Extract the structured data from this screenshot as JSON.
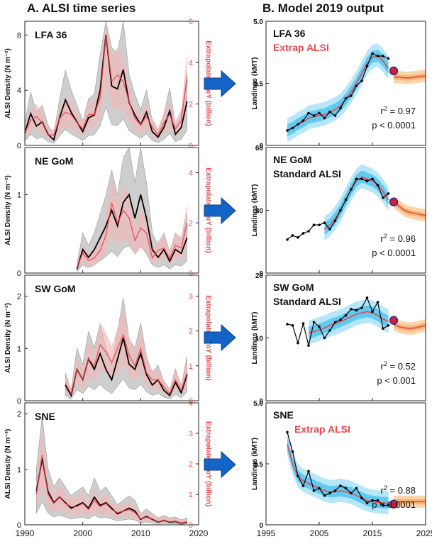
{
  "titles": {
    "left": "A. ALSI time series",
    "right": "B. Model 2019 output"
  },
  "axis_labels": {
    "left_y": "ALSI Density (N m⁻²)",
    "left_y2": "Extrapolated YoY (billion)",
    "right_y": "Landings (kMT)"
  },
  "colors": {
    "black_series": "#000000",
    "red_series": "#e8474c",
    "gray_band": "#bdbdbd",
    "pink_band": "#f2b9b9",
    "blue_band_outer": "#aee3f7",
    "blue_band_inner": "#4cc3ef",
    "forecast_band": "#f4b26a",
    "forecast_line": "#e8474c",
    "arrow": "#1464c8",
    "endpoint": "#d0202e"
  },
  "icons": {
    "arrow": "right-arrow-icon"
  },
  "chart_data": [
    {
      "type": "line",
      "panel": "left",
      "label": "LFA 36",
      "x": [
        1990,
        2020
      ],
      "xticks": [
        1990,
        2000,
        2010,
        2020
      ],
      "ylim": [
        0,
        9
      ],
      "yticks": [
        0,
        4,
        8
      ],
      "y2lim": [
        0,
        6
      ],
      "y2ticks": [
        0,
        2,
        4,
        6
      ],
      "years": [
        1990,
        1991,
        1992,
        1993,
        1994,
        1995,
        1996,
        1997,
        1998,
        1999,
        2000,
        2001,
        2002,
        2003,
        2004,
        2005,
        2006,
        2007,
        2008,
        2009,
        2010,
        2011,
        2012,
        2013,
        2014,
        2015,
        2016,
        2017,
        2018
      ],
      "black": [
        0.9,
        2.3,
        1.4,
        1.7,
        0.8,
        0.4,
        2.0,
        3.3,
        2.4,
        1.7,
        1.0,
        2.0,
        2.2,
        4.0,
        8.0,
        4.3,
        4.1,
        5.5,
        3.1,
        2.2,
        1.5,
        2.4,
        1.0,
        0.6,
        1.3,
        2.5,
        0.8,
        1.3,
        3.2
      ],
      "red": [
        0.6,
        1.2,
        1.4,
        1.1,
        0.5,
        0.5,
        1.3,
        1.6,
        1.5,
        1.1,
        0.8,
        1.5,
        1.5,
        2.3,
        5.3,
        3.1,
        3.4,
        3.1,
        2.1,
        1.3,
        1.0,
        1.4,
        0.9,
        0.5,
        1.1,
        1.5,
        0.8,
        1.2,
        3.3
      ]
    },
    {
      "type": "line",
      "panel": "left",
      "label": "NE GoM",
      "x": [
        1990,
        2020
      ],
      "xticks": [
        1990,
        2000,
        2010,
        2020
      ],
      "ylim": [
        0,
        1.6
      ],
      "yticks": [
        0,
        1
      ],
      "y2lim": [
        0,
        5
      ],
      "y2ticks": [
        0,
        2,
        4
      ],
      "years": [
        1999,
        2000,
        2001,
        2002,
        2003,
        2004,
        2005,
        2006,
        2007,
        2008,
        2009,
        2010,
        2011,
        2012,
        2013,
        2014,
        2015,
        2016,
        2017,
        2018
      ],
      "black": [
        0.05,
        0.3,
        0.2,
        0.3,
        0.45,
        0.6,
        0.8,
        0.6,
        0.9,
        1.0,
        0.7,
        1.0,
        0.7,
        0.3,
        0.2,
        0.3,
        0.15,
        0.3,
        0.25,
        0.45
      ],
      "red": [
        0.2,
        0.8,
        0.5,
        0.6,
        0.9,
        1.5,
        2.8,
        2.0,
        2.5,
        2.2,
        1.3,
        1.8,
        1.6,
        0.6,
        0.9,
        1.0,
        0.6,
        1.1,
        1.0,
        2.0
      ]
    },
    {
      "type": "line",
      "panel": "left",
      "label": "SW GoM",
      "x": [
        1990,
        2020
      ],
      "xticks": [
        1990,
        2000,
        2010,
        2020
      ],
      "ylim": [
        0,
        2.4
      ],
      "yticks": [
        0,
        1,
        2
      ],
      "y2lim": [
        0,
        3.6
      ],
      "y2ticks": [
        0,
        1,
        2,
        3
      ],
      "years": [
        1997,
        1998,
        1999,
        2000,
        2001,
        2002,
        2003,
        2004,
        2005,
        2006,
        2007,
        2008,
        2009,
        2010,
        2011,
        2012,
        2013,
        2014,
        2015,
        2016,
        2017,
        2018
      ],
      "black": [
        0.3,
        0.1,
        0.6,
        0.4,
        0.8,
        0.6,
        0.9,
        0.6,
        0.4,
        0.8,
        1.2,
        0.7,
        0.6,
        0.9,
        0.5,
        0.3,
        0.4,
        0.2,
        0.1,
        0.35,
        0.15,
        0.5
      ],
      "red": [
        0.5,
        0.2,
        0.9,
        0.6,
        1.2,
        1.0,
        1.6,
        1.4,
        1.1,
        1.5,
        1.9,
        1.3,
        1.0,
        1.5,
        0.8,
        0.6,
        0.6,
        0.4,
        0.2,
        0.6,
        0.3,
        0.8
      ]
    },
    {
      "type": "line",
      "panel": "left",
      "label": "SNE",
      "x": [
        1990,
        2020
      ],
      "xticks": [
        1990,
        2000,
        2010,
        2020
      ],
      "ylim": [
        0,
        2.2
      ],
      "yticks": [
        0,
        1,
        2
      ],
      "y2lim": [
        0,
        4
      ],
      "y2ticks": [
        0,
        1,
        2,
        3,
        4
      ],
      "years": [
        1992,
        1993,
        1994,
        1995,
        1996,
        1997,
        1998,
        1999,
        2000,
        2001,
        2002,
        2003,
        2004,
        2005,
        2006,
        2007,
        2008,
        2009,
        2010,
        2011,
        2012,
        2013,
        2014,
        2015,
        2016,
        2017,
        2018
      ],
      "black": [
        0.6,
        1.2,
        0.6,
        0.4,
        0.5,
        0.4,
        0.3,
        0.35,
        0.4,
        0.3,
        0.5,
        0.35,
        0.4,
        0.3,
        0.2,
        0.25,
        0.3,
        0.25,
        0.1,
        0.15,
        0.1,
        0.05,
        0.08,
        0.05,
        0.06,
        0.03,
        0.05
      ],
      "red": [
        1.0,
        2.3,
        1.0,
        0.7,
        0.9,
        0.7,
        0.6,
        0.6,
        0.7,
        0.5,
        0.8,
        0.6,
        0.7,
        0.5,
        0.4,
        0.45,
        0.5,
        0.4,
        0.2,
        0.25,
        0.2,
        0.1,
        0.15,
        0.1,
        0.12,
        0.06,
        0.1
      ]
    },
    {
      "type": "line",
      "panel": "right",
      "label": "LFA 36",
      "sublabel": "Extrap ALSI",
      "x": [
        1995,
        2025
      ],
      "xticks": [
        1995,
        2005,
        2015,
        2025
      ],
      "ylim": [
        0,
        5.0
      ],
      "yticks": [
        0,
        2.5,
        5.0
      ],
      "ytick_labels": [
        "0",
        "2.5",
        "5.0"
      ],
      "r2": "0.97",
      "p": "p < 0.0001",
      "obs_years": [
        1999,
        2000,
        2001,
        2002,
        2003,
        2004,
        2005,
        2006,
        2007,
        2008,
        2009,
        2010,
        2011,
        2012,
        2013,
        2014,
        2015,
        2016,
        2017,
        2018
      ],
      "obs": [
        0.6,
        0.7,
        0.85,
        1.0,
        1.3,
        1.2,
        1.3,
        1.1,
        1.35,
        1.2,
        1.5,
        1.9,
        2.0,
        2.4,
        2.6,
        3.2,
        3.7,
        3.6,
        3.6,
        3.5
      ],
      "fit": [
        0.6,
        0.7,
        0.85,
        0.95,
        1.1,
        1.15,
        1.2,
        1.25,
        1.35,
        1.45,
        1.6,
        1.85,
        2.15,
        2.5,
        2.9,
        3.3,
        3.55,
        3.6,
        3.4,
        3.1
      ],
      "endpoint": [
        2019,
        3.0
      ],
      "forecast_years": [
        2019,
        2020,
        2021,
        2022,
        2023,
        2024,
        2025
      ],
      "forecast": [
        2.75,
        2.75,
        2.72,
        2.72,
        2.75,
        2.78,
        2.8
      ]
    },
    {
      "type": "line",
      "panel": "right",
      "label": "NE GoM",
      "sublabel": "Standard ALSI",
      "x": [
        1995,
        2025
      ],
      "xticks": [
        1995,
        2005,
        2015,
        2025
      ],
      "ylim": [
        0,
        60
      ],
      "yticks": [
        0,
        30,
        60
      ],
      "ytick_labels": [
        "0",
        "30",
        "60"
      ],
      "r2": "0.96",
      "p": "p < 0.0001",
      "obs_years": [
        1999,
        2000,
        2001,
        2002,
        2003,
        2004,
        2005,
        2006,
        2007,
        2008,
        2009,
        2010,
        2011,
        2012,
        2013,
        2014,
        2015,
        2016,
        2017,
        2018
      ],
      "obs": [
        16,
        18,
        17,
        19,
        20,
        23,
        23,
        24,
        21,
        25,
        30,
        35,
        40,
        45,
        45,
        44,
        45,
        42,
        36,
        38
      ],
      "fit": [
        null,
        null,
        null,
        null,
        null,
        null,
        null,
        21,
        23,
        26,
        30,
        35,
        40,
        44,
        46,
        45,
        44,
        42,
        39,
        35
      ],
      "endpoint": [
        2019,
        34
      ],
      "forecast_years": [
        2019,
        2020,
        2021,
        2022,
        2023,
        2024,
        2025
      ],
      "forecast": [
        34,
        32,
        30,
        29,
        28.5,
        28,
        27.5
      ]
    },
    {
      "type": "line",
      "panel": "right",
      "label": "SW GoM",
      "sublabel": "Standard ALSI",
      "x": [
        1995,
        2025
      ],
      "xticks": [
        1995,
        2005,
        2015,
        2025
      ],
      "ylim": [
        0,
        20
      ],
      "yticks": [
        0,
        10,
        20
      ],
      "ytick_labels": [
        "0",
        "10",
        "20"
      ],
      "r2": "0.52",
      "p": "p < 0.001",
      "obs_years": [
        1999,
        2000,
        2001,
        2002,
        2003,
        2004,
        2005,
        2006,
        2007,
        2008,
        2009,
        2010,
        2011,
        2012,
        2013,
        2014,
        2015,
        2016,
        2017,
        2018
      ],
      "obs": [
        12.2,
        12.0,
        9.2,
        12.3,
        8.8,
        12.5,
        11.8,
        10.0,
        11.2,
        12.5,
        12.9,
        13.6,
        14.6,
        14.4,
        14.8,
        16.4,
        14.2,
        15.7,
        11.5,
        12.0
      ],
      "fit": [
        null,
        null,
        null,
        null,
        10.8,
        11.0,
        11.3,
        11.6,
        12.0,
        12.3,
        12.6,
        13.0,
        13.4,
        13.8,
        14.0,
        14.2,
        14.0,
        13.6,
        13.0,
        12.6
      ],
      "endpoint": [
        2019,
        12.8
      ],
      "forecast_years": [
        2019,
        2020,
        2021,
        2022,
        2023,
        2024,
        2025
      ],
      "forecast": [
        12.2,
        11.8,
        11.6,
        11.5,
        11.6,
        11.8,
        12.0
      ]
    },
    {
      "type": "line",
      "panel": "right",
      "label": "SNE",
      "sublabel": "Extrap ALSI",
      "x": [
        1995,
        2025
      ],
      "xticks": [
        1995,
        2005,
        2015,
        2025
      ],
      "ylim": [
        0,
        5.0
      ],
      "yticks": [
        0,
        2.5,
        5.0
      ],
      "ytick_labels": [
        "0",
        "2.5",
        "5.0"
      ],
      "r2": "0.88",
      "p": "p < 0.0001",
      "obs_years": [
        1999,
        2000,
        2001,
        2002,
        2003,
        2004,
        2005,
        2006,
        2007,
        2008,
        2009,
        2010,
        2011,
        2012,
        2013,
        2014,
        2015,
        2016,
        2017,
        2018
      ],
      "obs": [
        3.8,
        3.0,
        2.0,
        1.6,
        2.2,
        1.4,
        1.5,
        1.2,
        1.3,
        1.4,
        1.6,
        1.5,
        1.3,
        1.5,
        1.1,
        0.9,
        1.0,
        1.0,
        0.8,
        0.8
      ],
      "fit": [
        3.3,
        2.5,
        2.0,
        1.8,
        1.7,
        1.6,
        1.5,
        1.4,
        1.35,
        1.35,
        1.4,
        1.35,
        1.3,
        1.2,
        1.1,
        1.0,
        0.95,
        0.92,
        0.9,
        0.88
      ],
      "endpoint": [
        2019,
        0.85
      ],
      "forecast_years": [
        2019,
        2020,
        2021,
        2022,
        2023,
        2024,
        2025
      ],
      "forecast": [
        0.95,
        0.95,
        0.95,
        0.95,
        0.95,
        0.95,
        0.95
      ]
    }
  ]
}
